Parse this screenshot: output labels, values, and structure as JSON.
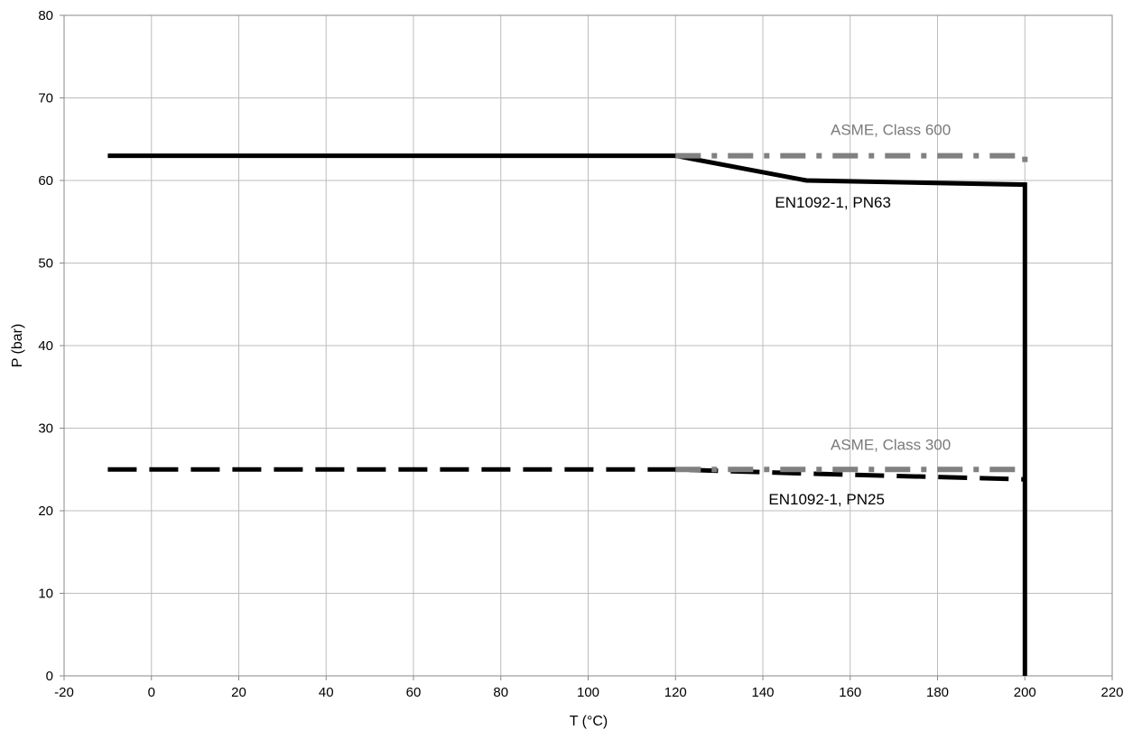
{
  "chart_data": {
    "type": "line",
    "xlabel": "T (°C)",
    "ylabel": "P (bar)",
    "xlim": [
      -20,
      220
    ],
    "ylim": [
      0,
      80
    ],
    "x_ticks": [
      -20,
      0,
      20,
      40,
      60,
      80,
      100,
      120,
      140,
      160,
      180,
      200,
      220
    ],
    "y_ticks": [
      0,
      10,
      20,
      30,
      40,
      50,
      60,
      70,
      80
    ],
    "grid": true,
    "legend": "none",
    "series": [
      {
        "name": "EN1092-1, PN63",
        "style": "solid",
        "color": "#000000",
        "x": [
          -10,
          120,
          150,
          200,
          200
        ],
        "y": [
          63,
          63,
          60,
          59.5,
          0
        ]
      },
      {
        "name": "ASME, Class 600",
        "style": "dash-dot",
        "color": "#808080",
        "x": [
          120,
          200,
          200
        ],
        "y": [
          63,
          63,
          62.2
        ]
      },
      {
        "name": "EN1092-1, PN25",
        "style": "dashed",
        "color": "#000000",
        "x": [
          -10,
          120,
          150,
          200
        ],
        "y": [
          25,
          25,
          24.5,
          23.8
        ]
      },
      {
        "name": "ASME, Class 300",
        "style": "dash-dot",
        "color": "#808080",
        "x": [
          120,
          200
        ],
        "y": [
          25,
          25
        ]
      }
    ]
  }
}
